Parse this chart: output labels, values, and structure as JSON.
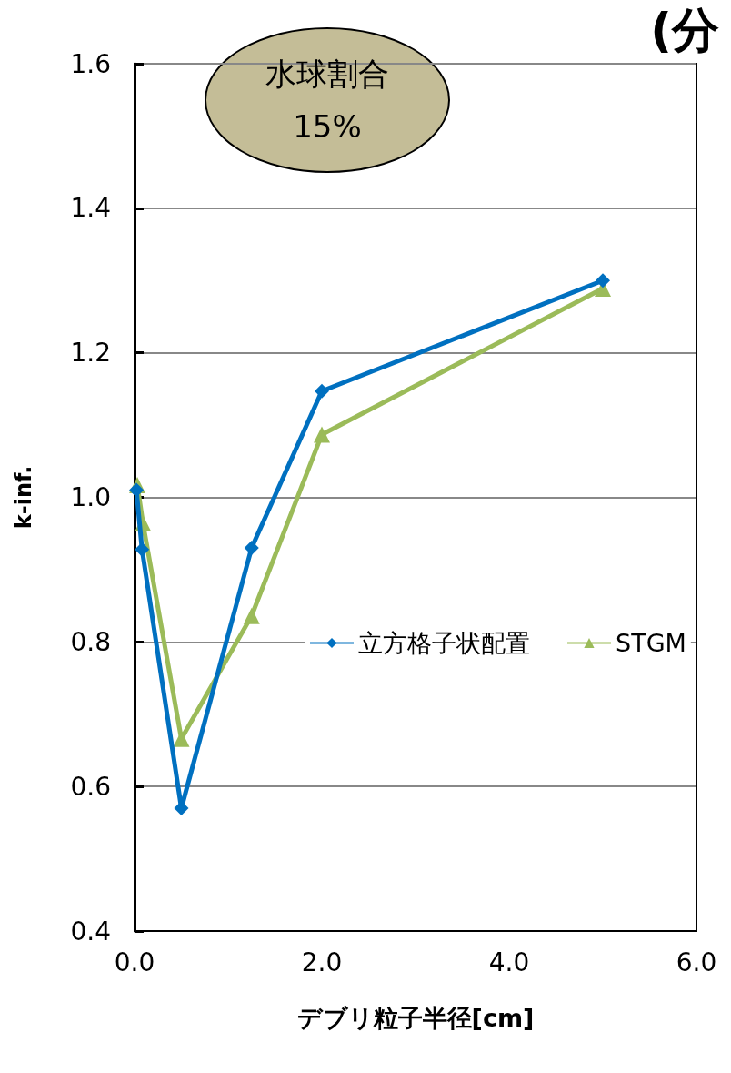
{
  "chart_data": {
    "type": "line",
    "title": "(分",
    "xlabel": "デブリ粒子半径[cm]",
    "ylabel": "k-inf.",
    "annotations": [
      "水球割合\n15%"
    ],
    "series": [
      {
        "name": "立方格子状配置",
        "color": "#0070c0",
        "marker": "diamond",
        "x": [
          0.02,
          0.08,
          0.5,
          1.25,
          2.0,
          5.0
        ],
        "values": [
          1.01,
          0.928,
          0.57,
          0.93,
          1.147,
          1.3
        ]
      },
      {
        "name": "STGM",
        "color": "#9bbb59",
        "marker": "triangle",
        "x": [
          0.03,
          0.09,
          0.5,
          1.25,
          2.0,
          5.0
        ],
        "values": [
          1.017,
          0.964,
          0.666,
          0.836,
          1.087,
          1.289
        ]
      }
    ],
    "xlim": [
      0,
      6
    ],
    "xticks": [
      {
        "value": 0,
        "label": "0.0"
      },
      {
        "value": 2,
        "label": "2.0"
      },
      {
        "value": 4,
        "label": "4.0"
      },
      {
        "value": 6,
        "label": "6.0"
      }
    ],
    "ylim": [
      0.4,
      1.6
    ],
    "yticks": [
      0.4,
      0.6,
      0.8,
      {
        "value": 1,
        "label": "1.0"
      },
      1.2,
      1.4,
      1.6
    ],
    "grid": "y",
    "legend": "right"
  }
}
